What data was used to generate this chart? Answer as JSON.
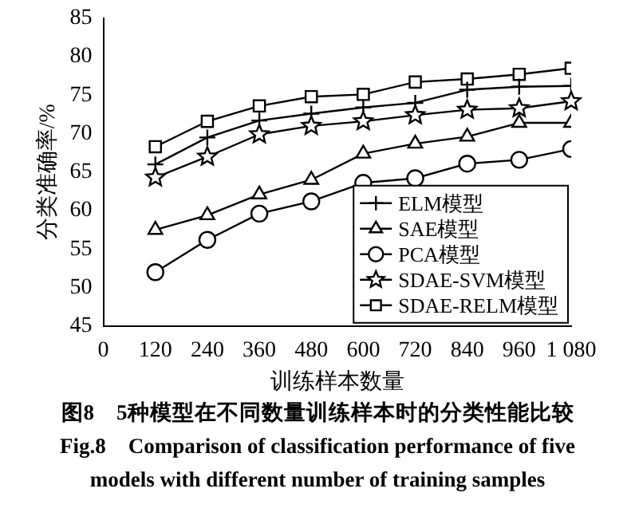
{
  "chart_data": {
    "type": "line",
    "xlabel": "训练样本数量",
    "ylabel": "分类准确率/%",
    "x": [
      120,
      240,
      360,
      480,
      600,
      720,
      840,
      960,
      1080
    ],
    "xlim": [
      0,
      1080
    ],
    "xticks": [
      0,
      120,
      240,
      360,
      480,
      600,
      720,
      840,
      960,
      {
        "value": 1080,
        "label": "1 080"
      }
    ],
    "ylim": [
      45,
      85
    ],
    "yticks": [
      45,
      50,
      55,
      60,
      65,
      70,
      75,
      80,
      85
    ],
    "grid": false,
    "legend": "bottom right",
    "series": [
      {
        "name": "ELM模型",
        "color": "#000000",
        "marker": "cross",
        "values": [
          66,
          69.5,
          71.7,
          72.6,
          73.4,
          74,
          75.7,
          76.1,
          76.2
        ]
      },
      {
        "name": "SAE模型",
        "color": "#000000",
        "marker": "triangle",
        "values": [
          57.5,
          59.4,
          62.1,
          64,
          67.4,
          68.7,
          69.6,
          71.4,
          71.4
        ]
      },
      {
        "name": "PCA模型",
        "color": "#000000",
        "marker": "circle",
        "values": [
          52,
          56.2,
          59.6,
          61.2,
          63.6,
          64.2,
          66.1,
          66.6,
          68
        ]
      },
      {
        "name": "SDAE-SVM模型",
        "color": "#000000",
        "marker": "star",
        "values": [
          64.3,
          67,
          69.9,
          71,
          71.6,
          72.4,
          73.1,
          73.3,
          74.2
        ]
      },
      {
        "name": "SDAE-RELM模型",
        "color": "#000000",
        "marker": "square",
        "values": [
          68.3,
          71.6,
          73.6,
          74.8,
          75.1,
          76.7,
          77.1,
          77.7,
          78.5
        ]
      }
    ],
    "annotations": [
      "图8　5种模型在不同数量训练样本时的分类性能比较",
      "Fig.8　Comparison of classification performance of five models with different number of training samples"
    ]
  }
}
